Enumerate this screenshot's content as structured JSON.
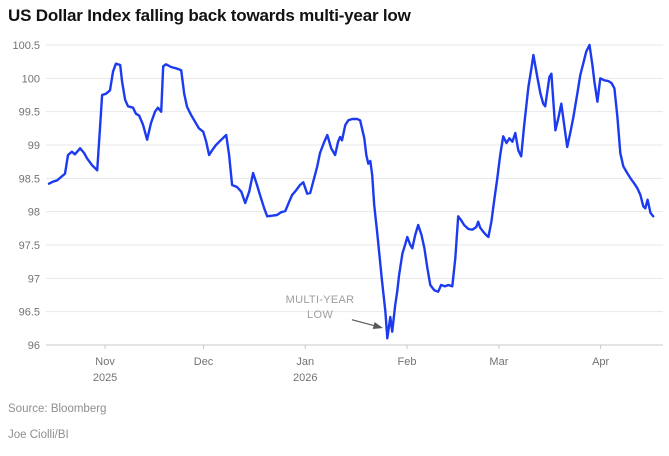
{
  "title": "US Dollar Index falling back towards multi-year low",
  "source": "Source: Bloomberg",
  "byline": "Joe Ciolli/BI",
  "colors": {
    "line": "#1c3bf0",
    "grid": "#e7e7e7",
    "axis": "#c9c9c9",
    "tick_text": "#737373",
    "annotation_text": "#9e9e9e",
    "arrow": "#595959",
    "title_text": "#121212",
    "source_text": "#8f8f8f",
    "background": "#ffffff"
  },
  "chart_data": {
    "type": "line",
    "title": "US Dollar Index falling back towards multi-year low",
    "series_name": "US Dollar Index",
    "grid": true,
    "legend": false,
    "x_axis": {
      "day_zero_date": "2025-10-14",
      "domain_days": [
        0,
        188
      ],
      "ticks": [
        {
          "label": "Nov",
          "sublabel": "2025",
          "day": 18
        },
        {
          "label": "Dec",
          "sublabel": "",
          "day": 48
        },
        {
          "label": "Jan",
          "sublabel": "2026",
          "day": 79
        },
        {
          "label": "Feb",
          "sublabel": "",
          "day": 110
        },
        {
          "label": "Mar",
          "sublabel": "",
          "day": 138
        },
        {
          "label": "Apr",
          "sublabel": "",
          "day": 169
        }
      ]
    },
    "y_axis": {
      "domain": [
        96,
        100.5
      ],
      "ticks": [
        {
          "label": "100.5",
          "value": 100.5
        },
        {
          "label": "100",
          "value": 100
        },
        {
          "label": "99.5",
          "value": 99.5
        },
        {
          "label": "99",
          "value": 99
        },
        {
          "label": "98.5",
          "value": 98.5
        },
        {
          "label": "98",
          "value": 98
        },
        {
          "label": "97.5",
          "value": 97.5
        },
        {
          "label": "97",
          "value": 97
        },
        {
          "label": "96.5",
          "value": 96.5
        },
        {
          "label": "96",
          "value": 96
        }
      ]
    },
    "annotation": {
      "line1": "MULTI-YEAR",
      "line2": "LOW",
      "label_at": {
        "day": 83.5,
        "value": 96.63
      },
      "arrow_from": {
        "day": 93.2,
        "value": 96.38
      },
      "arrow_to": {
        "day": 102.3,
        "value": 96.26
      },
      "points_to": {
        "day": 104,
        "value": 96.1
      }
    },
    "points": [
      [
        0.9,
        98.42
      ],
      [
        2.1,
        98.45
      ],
      [
        3.4,
        98.47
      ],
      [
        4.6,
        98.52
      ],
      [
        5.8,
        98.57
      ],
      [
        6.7,
        98.85
      ],
      [
        7.9,
        98.9
      ],
      [
        8.8,
        98.86
      ],
      [
        10.4,
        98.95
      ],
      [
        11.6,
        98.88
      ],
      [
        12.5,
        98.8
      ],
      [
        14,
        98.7
      ],
      [
        15.6,
        98.62
      ],
      [
        16.5,
        99.3
      ],
      [
        17.1,
        99.75
      ],
      [
        18.3,
        99.77
      ],
      [
        19.5,
        99.82
      ],
      [
        20.4,
        100.1
      ],
      [
        21.3,
        100.22
      ],
      [
        22.6,
        100.2
      ],
      [
        23.2,
        99.95
      ],
      [
        24.1,
        99.68
      ],
      [
        25,
        99.58
      ],
      [
        26.5,
        99.56
      ],
      [
        27.4,
        99.47
      ],
      [
        28.4,
        99.44
      ],
      [
        29.6,
        99.3
      ],
      [
        30.8,
        99.08
      ],
      [
        32,
        99.33
      ],
      [
        33.2,
        99.5
      ],
      [
        34.1,
        99.56
      ],
      [
        35.1,
        99.5
      ],
      [
        35.7,
        100.18
      ],
      [
        36.6,
        100.21
      ],
      [
        38.1,
        100.17
      ],
      [
        39.6,
        100.15
      ],
      [
        41.2,
        100.12
      ],
      [
        42.1,
        99.77
      ],
      [
        43,
        99.57
      ],
      [
        44.2,
        99.45
      ],
      [
        45.4,
        99.35
      ],
      [
        46.6,
        99.25
      ],
      [
        47.9,
        99.2
      ],
      [
        48.8,
        99.05
      ],
      [
        49.7,
        98.85
      ],
      [
        50.6,
        98.92
      ],
      [
        51.8,
        99
      ],
      [
        53.4,
        99.08
      ],
      [
        54.9,
        99.15
      ],
      [
        55.8,
        98.85
      ],
      [
        56.7,
        98.4
      ],
      [
        58.2,
        98.37
      ],
      [
        59.5,
        98.3
      ],
      [
        60.7,
        98.13
      ],
      [
        61.9,
        98.3
      ],
      [
        63.1,
        98.58
      ],
      [
        64.3,
        98.4
      ],
      [
        65.2,
        98.25
      ],
      [
        66.5,
        98.05
      ],
      [
        67.4,
        97.93
      ],
      [
        68.9,
        97.94
      ],
      [
        70.4,
        97.95
      ],
      [
        71.6,
        97.99
      ],
      [
        72.9,
        98.01
      ],
      [
        74.1,
        98.15
      ],
      [
        75,
        98.25
      ],
      [
        76.2,
        98.32
      ],
      [
        77.4,
        98.4
      ],
      [
        78.4,
        98.44
      ],
      [
        79.6,
        98.27
      ],
      [
        80.5,
        98.28
      ],
      [
        81.7,
        98.5
      ],
      [
        82.6,
        98.67
      ],
      [
        83.5,
        98.88
      ],
      [
        84.8,
        99.05
      ],
      [
        85.7,
        99.15
      ],
      [
        86.9,
        98.95
      ],
      [
        88.1,
        98.85
      ],
      [
        89,
        99.05
      ],
      [
        89.6,
        99.12
      ],
      [
        90.2,
        99.07
      ],
      [
        91.2,
        99.3
      ],
      [
        92.1,
        99.37
      ],
      [
        93.3,
        99.39
      ],
      [
        94.8,
        99.39
      ],
      [
        95.7,
        99.37
      ],
      [
        97,
        99.1
      ],
      [
        97.6,
        98.85
      ],
      [
        98.2,
        98.72
      ],
      [
        98.8,
        98.76
      ],
      [
        99.4,
        98.55
      ],
      [
        100,
        98.1
      ],
      [
        100.9,
        97.7
      ],
      [
        101.8,
        97.25
      ],
      [
        102.4,
        96.95
      ],
      [
        103.4,
        96.5
      ],
      [
        104,
        96.1
      ],
      [
        104.9,
        96.42
      ],
      [
        105.5,
        96.2
      ],
      [
        106.4,
        96.6
      ],
      [
        107,
        96.8
      ],
      [
        107.6,
        97.05
      ],
      [
        108.6,
        97.37
      ],
      [
        109.5,
        97.52
      ],
      [
        110.1,
        97.62
      ],
      [
        111,
        97.5
      ],
      [
        111.6,
        97.45
      ],
      [
        112.5,
        97.65
      ],
      [
        113.4,
        97.8
      ],
      [
        114.4,
        97.65
      ],
      [
        115.3,
        97.45
      ],
      [
        116.2,
        97.15
      ],
      [
        117.1,
        96.9
      ],
      [
        118.3,
        96.82
      ],
      [
        119.5,
        96.8
      ],
      [
        120.4,
        96.9
      ],
      [
        121.6,
        96.88
      ],
      [
        122.6,
        96.9
      ],
      [
        123.8,
        96.88
      ],
      [
        124.7,
        97.3
      ],
      [
        125.6,
        97.93
      ],
      [
        126.5,
        97.87
      ],
      [
        127.4,
        97.8
      ],
      [
        128.7,
        97.74
      ],
      [
        129.9,
        97.73
      ],
      [
        131.1,
        97.77
      ],
      [
        131.7,
        97.85
      ],
      [
        132.3,
        97.76
      ],
      [
        133.2,
        97.7
      ],
      [
        134.1,
        97.65
      ],
      [
        134.8,
        97.62
      ],
      [
        135.7,
        97.85
      ],
      [
        136.6,
        98.18
      ],
      [
        137.5,
        98.5
      ],
      [
        138.4,
        98.85
      ],
      [
        139.3,
        99.13
      ],
      [
        140.3,
        99.03
      ],
      [
        141.2,
        99.1
      ],
      [
        142.1,
        99.05
      ],
      [
        143,
        99.18
      ],
      [
        143.9,
        98.92
      ],
      [
        144.8,
        98.83
      ],
      [
        145.7,
        99.3
      ],
      [
        147,
        99.87
      ],
      [
        147.9,
        100.15
      ],
      [
        148.5,
        100.35
      ],
      [
        149.7,
        100.02
      ],
      [
        150.6,
        99.78
      ],
      [
        151.5,
        99.62
      ],
      [
        152.1,
        99.58
      ],
      [
        153.4,
        100.02
      ],
      [
        154,
        100.07
      ],
      [
        155.2,
        99.22
      ],
      [
        156.1,
        99.4
      ],
      [
        157,
        99.62
      ],
      [
        157.9,
        99.3
      ],
      [
        158.8,
        98.97
      ],
      [
        159.8,
        99.2
      ],
      [
        160.7,
        99.42
      ],
      [
        161.9,
        99.77
      ],
      [
        162.8,
        100.05
      ],
      [
        163.7,
        100.22
      ],
      [
        164.6,
        100.4
      ],
      [
        165.6,
        100.5
      ],
      [
        166.5,
        100.2
      ],
      [
        167.1,
        99.95
      ],
      [
        168,
        99.65
      ],
      [
        168.9,
        100
      ],
      [
        170.1,
        99.97
      ],
      [
        171.3,
        99.96
      ],
      [
        172.3,
        99.93
      ],
      [
        173.2,
        99.85
      ],
      [
        174.1,
        99.42
      ],
      [
        175,
        98.88
      ],
      [
        175.9,
        98.68
      ],
      [
        177.1,
        98.58
      ],
      [
        178.1,
        98.5
      ],
      [
        179.3,
        98.42
      ],
      [
        180.2,
        98.35
      ],
      [
        181.1,
        98.25
      ],
      [
        182,
        98.08
      ],
      [
        182.6,
        98.05
      ],
      [
        183.3,
        98.18
      ],
      [
        184.2,
        97.98
      ],
      [
        185,
        97.93
      ]
    ]
  }
}
